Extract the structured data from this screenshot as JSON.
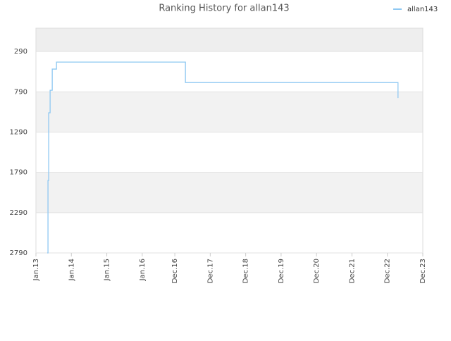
{
  "chart_data": {
    "type": "line",
    "title": "Ranking History for allan143",
    "x": [
      2013.32,
      2013.34,
      2013.36,
      2013.4,
      2013.46,
      2013.58,
      2013.88,
      2017.22,
      2023.22
    ],
    "series": [
      {
        "name": "allan143",
        "color": "#8ec8f2",
        "values": [
          2790,
          1890,
          1050,
          771,
          508,
          421,
          421,
          675,
          867
        ]
      }
    ],
    "xlim": [
      2013,
      2023.92
    ],
    "xticks": [
      {
        "value": 2013,
        "label": "Jan.13"
      },
      {
        "value": 2014,
        "label": "Jan.14"
      },
      {
        "value": 2015,
        "label": "Jan.15"
      },
      {
        "value": 2016,
        "label": "Jan.16"
      },
      {
        "value": 2016.92,
        "label": "Dec.16"
      },
      {
        "value": 2017.92,
        "label": "Dec.17"
      },
      {
        "value": 2018.92,
        "label": "Dec.18"
      },
      {
        "value": 2019.92,
        "label": "Dec.19"
      },
      {
        "value": 2020.92,
        "label": "Dec.20"
      },
      {
        "value": 2021.92,
        "label": "Dec.21"
      },
      {
        "value": 2022.92,
        "label": "Dec.22"
      },
      {
        "value": 2023.92,
        "label": "Dec.23"
      }
    ],
    "ylim": [
      2790,
      0
    ],
    "yticks": [
      290,
      790,
      1290,
      1790,
      2290,
      2790
    ],
    "legend": "top-right"
  }
}
